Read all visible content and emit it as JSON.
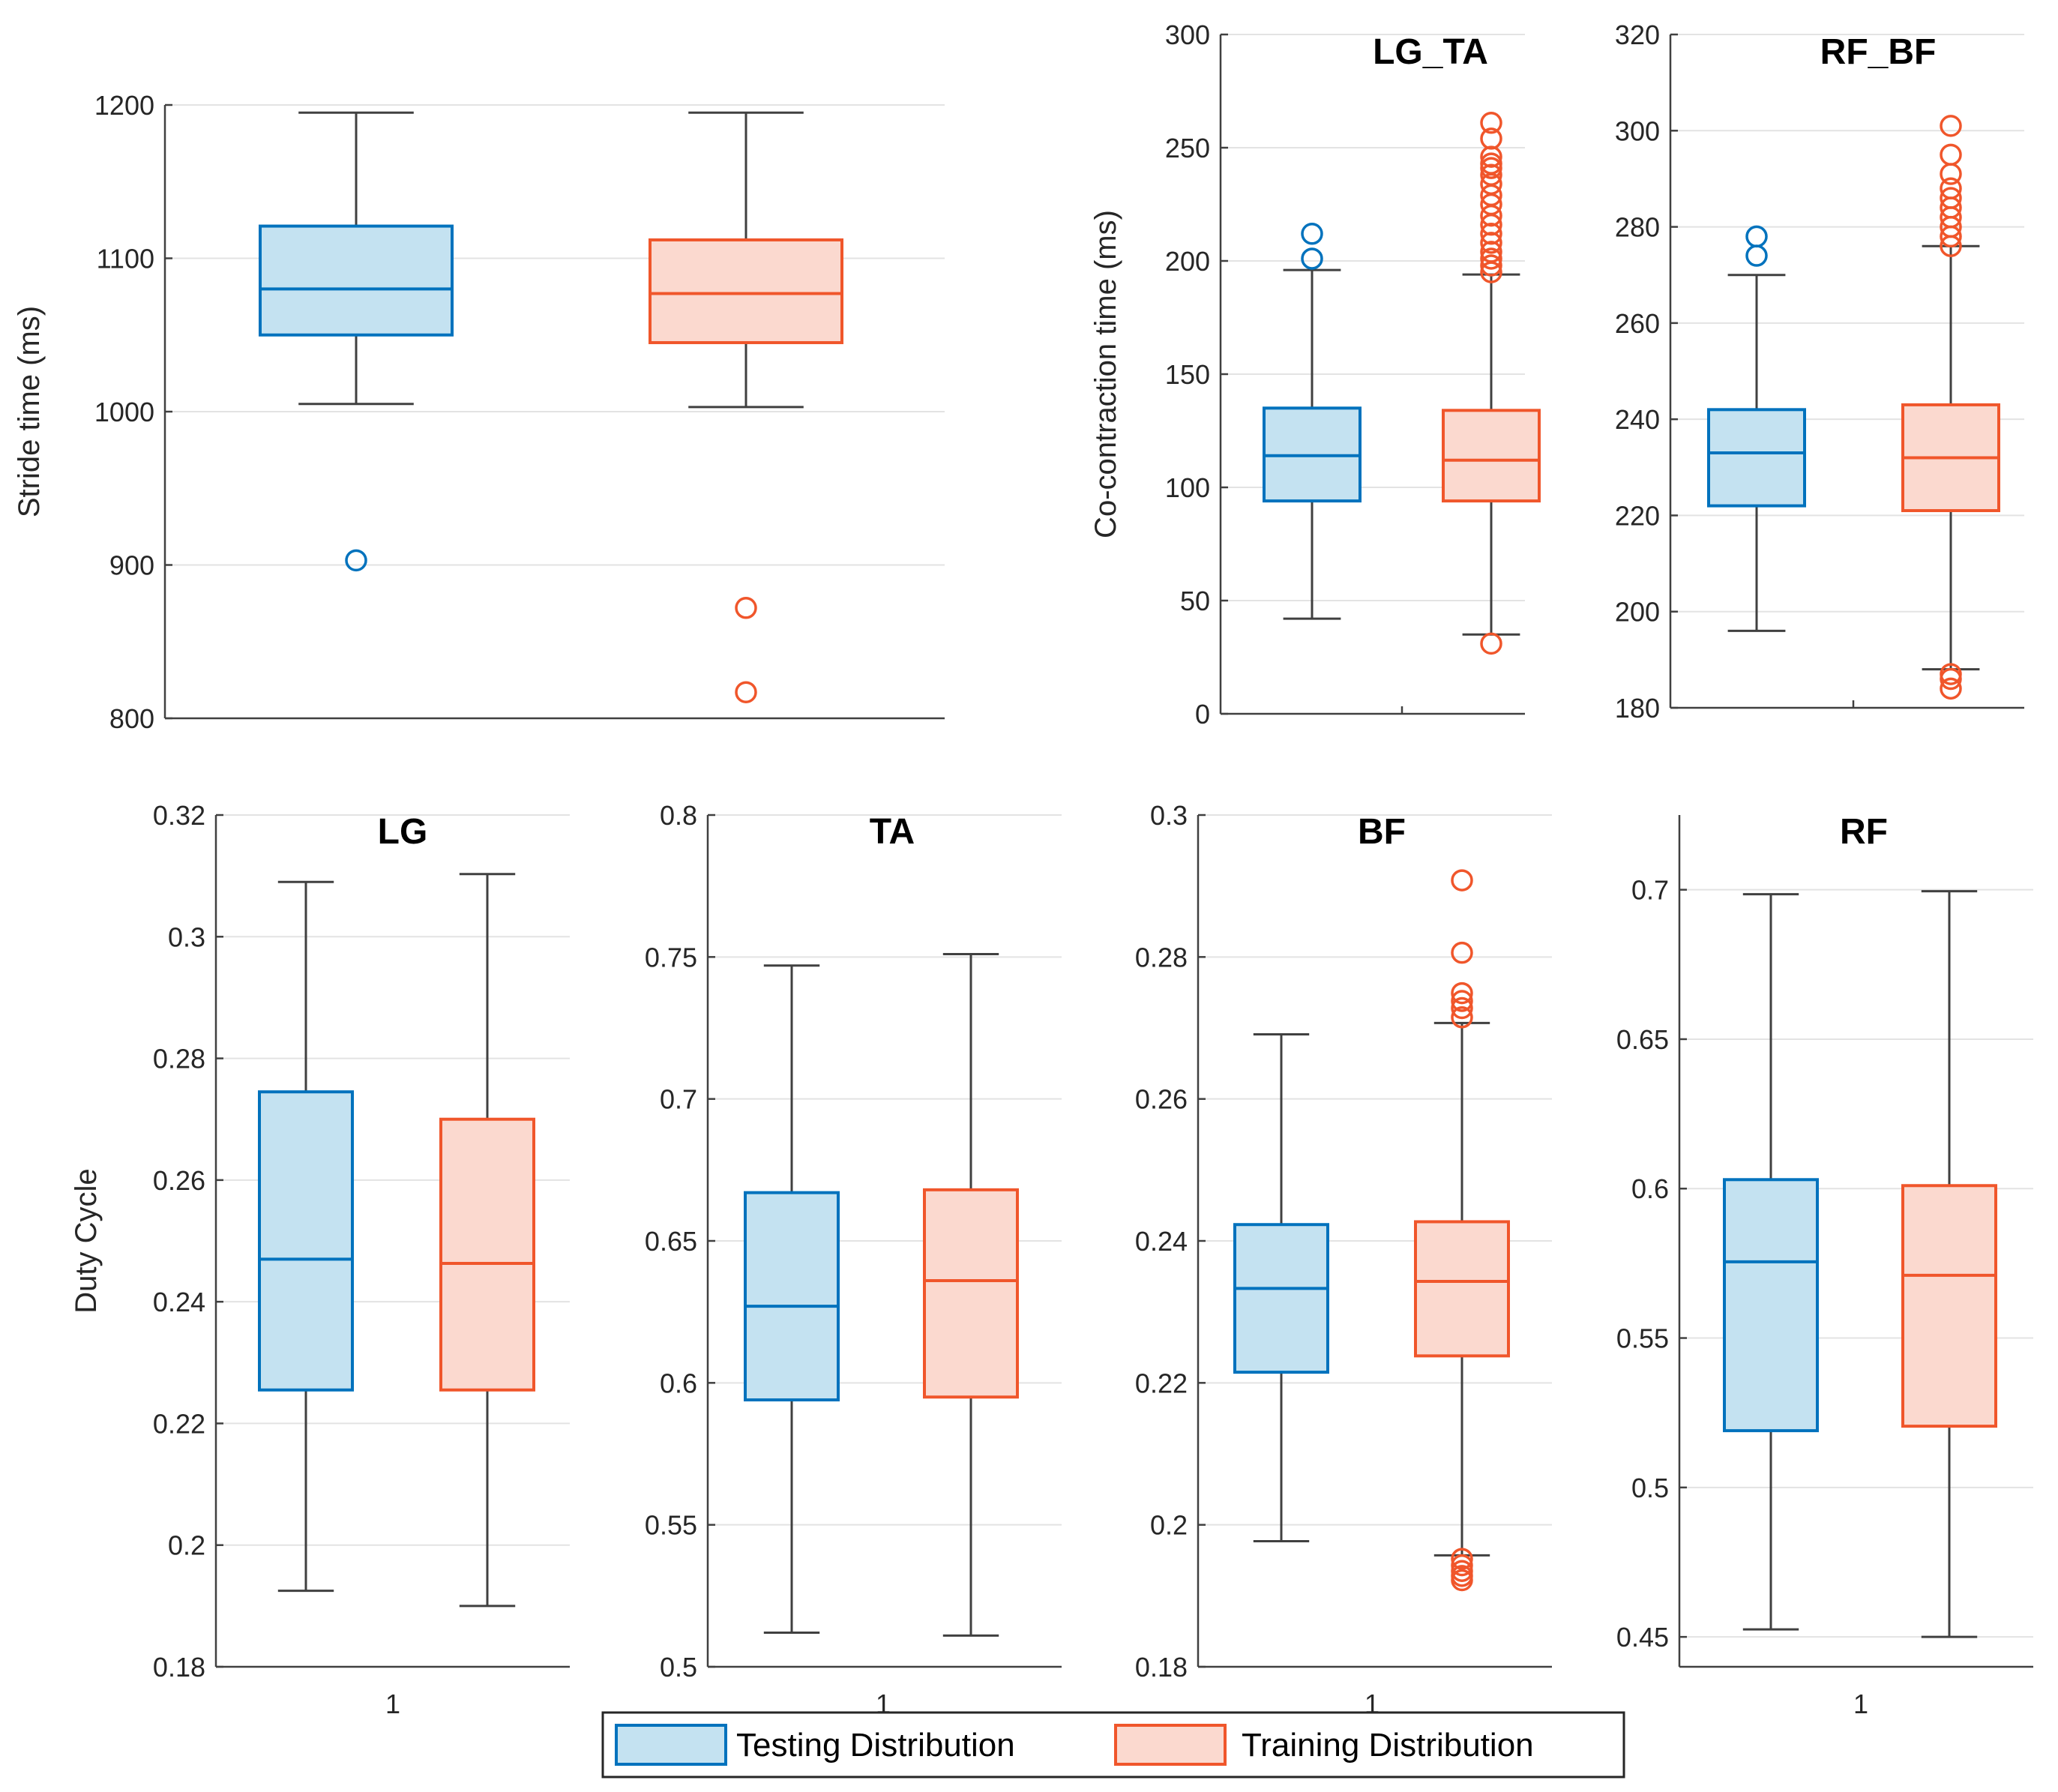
{
  "chart_data": [
    {
      "id": "stride",
      "type": "box",
      "title": "",
      "ylabel": "Stride time (ms)",
      "xticks": [],
      "ylim": [
        800,
        1200
      ],
      "yticks": [
        800,
        900,
        1000,
        1100,
        1200
      ],
      "ytick_labels": [
        "800",
        "900",
        "1000",
        "1100",
        "1200"
      ],
      "grid": true,
      "boxes": [
        {
          "series": "Testing Distribution",
          "whisker_low": 1005,
          "q1": 1050,
          "median": 1080,
          "q3": 1121,
          "whisker_high": 1195,
          "outliers": [
            903
          ]
        },
        {
          "series": "Training Distribution",
          "whisker_low": 1003,
          "q1": 1045,
          "median": 1077,
          "q3": 1112,
          "whisker_high": 1195,
          "outliers": [
            872,
            817
          ]
        }
      ]
    },
    {
      "id": "lgta",
      "type": "box",
      "title": "LG_TA",
      "ylabel": "Co-contraction time (ms)",
      "xticks": [],
      "ylim": [
        0,
        300
      ],
      "yticks": [
        0,
        50,
        100,
        150,
        200,
        250,
        300
      ],
      "ytick_labels": [
        "0",
        "50",
        "100",
        "150",
        "200",
        "250",
        "300"
      ],
      "grid": true,
      "boxes": [
        {
          "series": "Testing Distribution",
          "whisker_low": 42,
          "q1": 94,
          "median": 114,
          "q3": 135,
          "whisker_high": 196,
          "outliers": [
            201,
            212
          ]
        },
        {
          "series": "Training Distribution",
          "whisker_low": 35,
          "q1": 94,
          "median": 112,
          "q3": 134,
          "whisker_high": 194,
          "outliers": [
            31,
            195,
            198,
            201,
            204,
            208,
            212,
            216,
            220,
            225,
            229,
            234,
            238,
            241,
            243,
            246,
            254,
            261
          ]
        }
      ]
    },
    {
      "id": "rfbf",
      "type": "box",
      "title": "RF_BF",
      "ylabel": "",
      "xticks": [],
      "ylim": [
        180,
        320
      ],
      "yticks": [
        180,
        200,
        220,
        240,
        260,
        280,
        300,
        320
      ],
      "ytick_labels": [
        "180",
        "200",
        "220",
        "240",
        "260",
        "280",
        "300",
        "320"
      ],
      "grid": true,
      "boxes": [
        {
          "series": "Testing Distribution",
          "whisker_low": 196,
          "q1": 222,
          "median": 233,
          "q3": 242,
          "whisker_high": 270,
          "outliers": [
            274,
            278
          ]
        },
        {
          "series": "Training Distribution",
          "whisker_low": 188,
          "q1": 221,
          "median": 232,
          "q3": 243,
          "whisker_high": 276,
          "outliers": [
            184,
            186,
            187,
            276,
            278,
            280,
            282,
            284,
            286,
            288,
            291,
            295,
            301
          ]
        }
      ]
    },
    {
      "id": "lg",
      "type": "box",
      "title": "LG",
      "ylabel": "Duty Cycle",
      "xticks": [
        "1"
      ],
      "ylim": [
        0.18,
        0.32
      ],
      "yticks": [
        0.18,
        0.2,
        0.22,
        0.24,
        0.26,
        0.28,
        0.3,
        0.32
      ],
      "ytick_labels": [
        "0.18",
        "0.2",
        "0.22",
        "0.24",
        "0.26",
        "0.28",
        "0.3",
        "0.32"
      ],
      "grid": true,
      "boxes": [
        {
          "series": "Testing Distribution",
          "whisker_low": 0.1925,
          "q1": 0.2255,
          "median": 0.247,
          "q3": 0.2745,
          "whisker_high": 0.309,
          "outliers": []
        },
        {
          "series": "Training Distribution",
          "whisker_low": 0.19,
          "q1": 0.2255,
          "median": 0.2463,
          "q3": 0.27,
          "whisker_high": 0.3103,
          "outliers": []
        }
      ]
    },
    {
      "id": "ta",
      "type": "box",
      "title": "TA",
      "ylabel": "",
      "xticks": [
        "1"
      ],
      "ylim": [
        0.5,
        0.8
      ],
      "yticks": [
        0.5,
        0.55,
        0.6,
        0.65,
        0.7,
        0.75,
        0.8
      ],
      "ytick_labels": [
        "0.5",
        "0.55",
        "0.6",
        "0.65",
        "0.7",
        "0.75",
        "0.8"
      ],
      "grid": true,
      "boxes": [
        {
          "series": "Testing Distribution",
          "whisker_low": 0.512,
          "q1": 0.594,
          "median": 0.627,
          "q3": 0.667,
          "whisker_high": 0.747,
          "outliers": []
        },
        {
          "series": "Training Distribution",
          "whisker_low": 0.511,
          "q1": 0.595,
          "median": 0.636,
          "q3": 0.668,
          "whisker_high": 0.751,
          "outliers": []
        }
      ]
    },
    {
      "id": "bf",
      "type": "box",
      "title": "BF",
      "ylabel": "",
      "xticks": [
        "1"
      ],
      "ylim": [
        0.18,
        0.3
      ],
      "yticks": [
        0.18,
        0.2,
        0.22,
        0.24,
        0.26,
        0.28,
        0.3
      ],
      "ytick_labels": [
        "0.18",
        "0.2",
        "0.22",
        "0.24",
        "0.26",
        "0.28",
        "0.3"
      ],
      "grid": true,
      "boxes": [
        {
          "series": "Testing Distribution",
          "whisker_low": 0.1977,
          "q1": 0.2215,
          "median": 0.2333,
          "q3": 0.2423,
          "whisker_high": 0.2691,
          "outliers": []
        },
        {
          "series": "Training Distribution",
          "whisker_low": 0.1957,
          "q1": 0.2238,
          "median": 0.2343,
          "q3": 0.2427,
          "whisker_high": 0.2707,
          "outliers": [
            0.1922,
            0.1928,
            0.1935,
            0.1943,
            0.1952,
            0.2715,
            0.2728,
            0.2738,
            0.2749,
            0.2806,
            0.2908
          ]
        }
      ]
    },
    {
      "id": "rf",
      "type": "box",
      "title": "RF",
      "ylabel": "",
      "xticks": [
        "1"
      ],
      "ylim": [
        0.44,
        0.725
      ],
      "yticks": [
        0.45,
        0.5,
        0.55,
        0.6,
        0.65,
        0.7
      ],
      "ytick_labels": [
        "0.45",
        "0.5",
        "0.55",
        "0.6",
        "0.65",
        "0.7"
      ],
      "grid": true,
      "boxes": [
        {
          "series": "Testing Distribution",
          "whisker_low": 0.4525,
          "q1": 0.519,
          "median": 0.5755,
          "q3": 0.603,
          "whisker_high": 0.6985,
          "outliers": []
        },
        {
          "series": "Training Distribution",
          "whisker_low": 0.45,
          "q1": 0.5205,
          "median": 0.571,
          "q3": 0.601,
          "whisker_high": 0.6995,
          "outliers": []
        }
      ]
    }
  ],
  "legend": {
    "placement": "bottom-center",
    "items": [
      {
        "label": "Testing Distribution",
        "edge_color": "#0072BD",
        "fill_color": "#C4E2F1"
      },
      {
        "label": "Training Distribution",
        "edge_color": "#F0562B",
        "fill_color": "#FBD9CF"
      }
    ]
  },
  "colors": {
    "testing_edge": "#0072BD",
    "testing_fill": "#C4E2F1",
    "training_edge": "#F0562B",
    "training_fill": "#FBD9CF",
    "whisker": "#404040",
    "axis": "#404040",
    "grid": "#E3E3E3"
  }
}
